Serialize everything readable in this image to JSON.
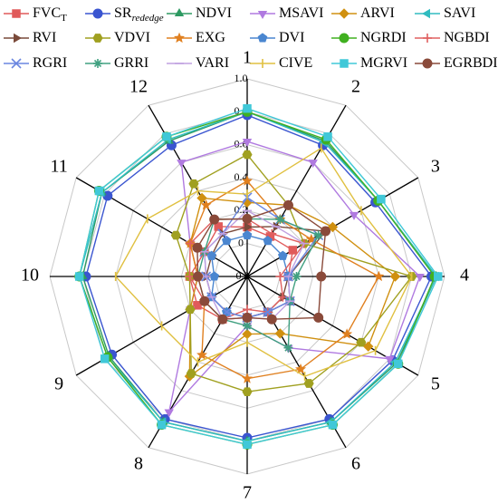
{
  "chart_data": {
    "type": "radar",
    "categories": [
      "1",
      "2",
      "3",
      "4",
      "5",
      "6",
      "7",
      "8",
      "9",
      "10",
      "11",
      "12"
    ],
    "rlim": [
      -0.2,
      1.0
    ],
    "rticks": [
      -0.2,
      0,
      0.2,
      0.4,
      0.6,
      0.8,
      {
        "value": 1.0,
        "label": "1.0"
      }
    ],
    "grid": true,
    "series": [
      {
        "name": "FVC",
        "subscript": "T",
        "color": "#e05a5a",
        "marker": "square",
        "values": [
          0.1,
          0.08,
          0.12,
          0.05,
          0.1,
          0.05,
          0.05,
          0.1,
          0.15,
          0.15,
          0.1,
          0.15
        ]
      },
      {
        "name": "SR",
        "subscript": "rededge",
        "color": "#3a55d0",
        "marker": "circle",
        "values": [
          0.78,
          0.72,
          0.7,
          0.92,
          0.82,
          0.8,
          0.78,
          0.8,
          0.75,
          0.78,
          0.78,
          0.72
        ]
      },
      {
        "name": "NDVI",
        "color": "#2e9a62",
        "marker": "triangle-up",
        "values": [
          0.8,
          0.75,
          0.72,
          0.95,
          0.85,
          0.82,
          0.8,
          0.82,
          0.77,
          0.8,
          0.82,
          0.75
        ]
      },
      {
        "name": "MSAVI",
        "color": "#b07ae0",
        "marker": "triangle-down",
        "values": [
          0.62,
          0.6,
          0.55,
          0.85,
          0.8,
          0.3,
          0.1,
          0.75,
          0.2,
          0.1,
          0.2,
          0.6
        ]
      },
      {
        "name": "ARVI",
        "color": "#d09010",
        "marker": "diamond",
        "values": [
          0.25,
          0.3,
          0.4,
          0.7,
          0.65,
          0.2,
          0.15,
          0.5,
          0.2,
          0.1,
          0.2,
          0.35
        ]
      },
      {
        "name": "SAVI",
        "color": "#30bcc0",
        "marker": "triangle-left",
        "values": [
          0.8,
          0.74,
          0.72,
          0.95,
          0.84,
          0.82,
          0.8,
          0.82,
          0.78,
          0.82,
          0.82,
          0.76
        ]
      },
      {
        "name": "RVI",
        "color": "#7a4a3a",
        "marker": "triangle-right",
        "values": [
          0.1,
          0.15,
          0.35,
          0.05,
          0.05,
          0.05,
          0.05,
          0.05,
          0.05,
          0.05,
          0.05,
          0.1
        ]
      },
      {
        "name": "VDVI",
        "color": "#a0a020",
        "marker": "hexagon",
        "values": [
          0.54,
          0.3,
          0.2,
          0.8,
          0.6,
          0.55,
          0.5,
          0.48,
          0.2,
          0.15,
          0.3,
          0.45
        ]
      },
      {
        "name": "EXG",
        "color": "#e08020",
        "marker": "star",
        "values": [
          0.38,
          0.2,
          0.25,
          0.6,
          0.5,
          0.45,
          0.42,
          0.35,
          0.1,
          0.1,
          0.2,
          0.3
        ]
      },
      {
        "name": "DVI",
        "color": "#4a86d0",
        "marker": "pentagon",
        "values": [
          0.05,
          0.05,
          0.05,
          0.05,
          0.1,
          0.05,
          0.05,
          0.05,
          0.05,
          0.0,
          0.05,
          0.05
        ]
      },
      {
        "name": "NGRDI",
        "color": "#40b020",
        "marker": "circle",
        "values": [
          0.8,
          0.76,
          0.72,
          0.94,
          0.86,
          0.84,
          0.82,
          0.84,
          0.78,
          0.82,
          0.84,
          0.78
        ]
      },
      {
        "name": "NGBDI",
        "color": "#e06060",
        "marker": "plus",
        "values": [
          0.15,
          0.1,
          0.2,
          0.0,
          0.05,
          0.05,
          0.0,
          0.1,
          0.1,
          0.15,
          0.2,
          0.2
        ]
      },
      {
        "name": "RGRI",
        "color": "#6a86e0",
        "marker": "x",
        "values": [
          0.28,
          0.2,
          0.3,
          0.05,
          0.1,
          0.05,
          0.05,
          0.05,
          0.05,
          0.05,
          0.1,
          0.1
        ]
      },
      {
        "name": "GRRI",
        "color": "#40a080",
        "marker": "asterisk",
        "values": [
          0.15,
          0.2,
          0.3,
          0.1,
          0.1,
          0.3,
          0.1,
          0.1,
          0.1,
          0.1,
          0.1,
          0.2
        ]
      },
      {
        "name": "VARI",
        "color": "#c0a0e0",
        "marker": "hline",
        "values": [
          0.2,
          0.15,
          0.2,
          0.05,
          0.1,
          0.1,
          0.05,
          0.1,
          0.05,
          0.05,
          0.1,
          0.1
        ]
      },
      {
        "name": "CIVE",
        "color": "#e0c040",
        "marker": "vline",
        "values": [
          0.3,
          0.7,
          0.6,
          0.8,
          0.7,
          0.5,
          0.2,
          0.4,
          0.4,
          0.6,
          0.5,
          0.4
        ]
      },
      {
        "name": "MGRVI",
        "color": "#40c8d8",
        "marker": "square",
        "values": [
          0.82,
          0.78,
          0.74,
          0.96,
          0.86,
          0.84,
          0.82,
          0.84,
          0.8,
          0.82,
          0.84,
          0.78
        ]
      },
      {
        "name": "EGRBDI",
        "color": "#8a4a3a",
        "marker": "circle",
        "values": [
          0.15,
          0.3,
          0.35,
          0.25,
          0.3,
          0.1,
          0.05,
          0.1,
          0.1,
          0.1,
          0.15,
          0.2
        ]
      }
    ]
  }
}
